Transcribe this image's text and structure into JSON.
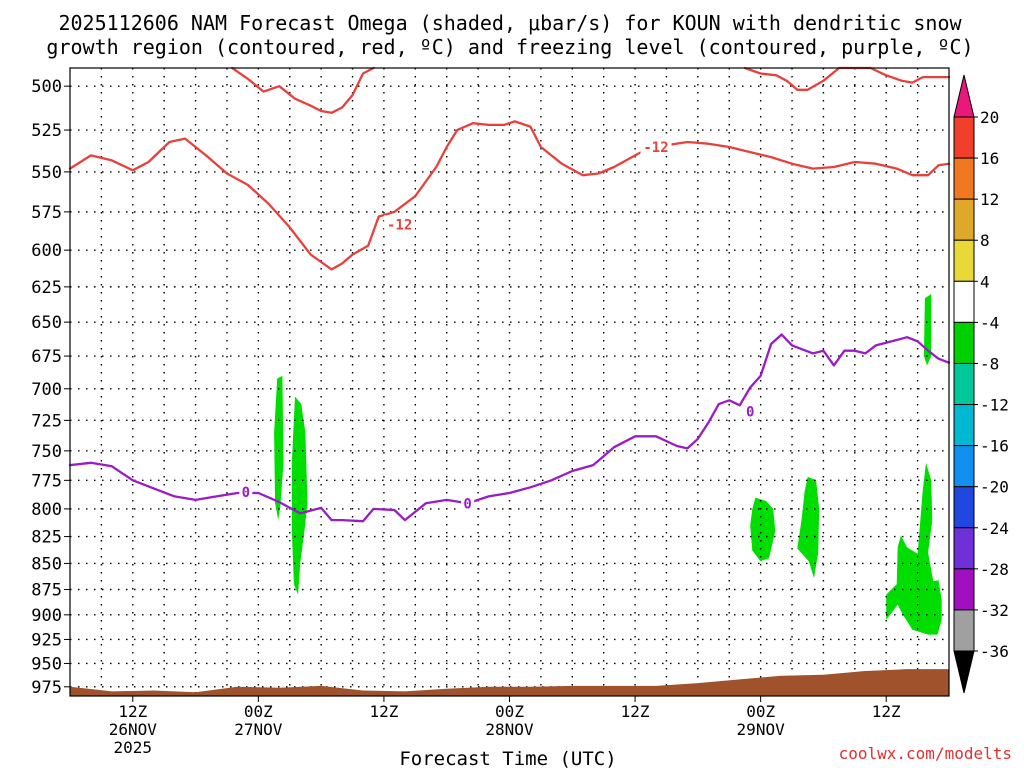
{
  "title": {
    "line1": "2025112606 NAM Forecast Omega (shaded, μbar/s) for KOUN with dendritic snow",
    "line2": "growth region (contoured, red, ºC) and freezing level (contoured, purple, ºC)"
  },
  "credit": "coolwx.com/modelts",
  "chart_data": {
    "type": "area",
    "xlabel": "Forecast Time (UTC)",
    "ylabel": "",
    "x_unit": "hours since 2025-11-26 00Z",
    "xlim": [
      6,
      90
    ],
    "ylim": [
      985,
      490
    ],
    "y_scale": "log-pressure",
    "y_ticks": [
      500,
      525,
      550,
      575,
      600,
      625,
      650,
      675,
      700,
      725,
      750,
      775,
      800,
      825,
      850,
      875,
      900,
      925,
      950,
      975
    ],
    "x_ticks": [
      {
        "x": 12,
        "l1": "12Z",
        "l2": "26NOV",
        "l3": "2025"
      },
      {
        "x": 24,
        "l1": "00Z",
        "l2": "27NOV",
        "l3": ""
      },
      {
        "x": 36,
        "l1": "12Z",
        "l2": "",
        "l3": ""
      },
      {
        "x": 48,
        "l1": "00Z",
        "l2": "28NOV",
        "l3": ""
      },
      {
        "x": 60,
        "l1": "12Z",
        "l2": "",
        "l3": ""
      },
      {
        "x": 72,
        "l1": "00Z",
        "l2": "29NOV",
        "l3": ""
      },
      {
        "x": 84,
        "l1": "12Z",
        "l2": "",
        "l3": ""
      }
    ],
    "grid": true,
    "colors": {
      "dgz": "#e8413c",
      "freezing": "#9a1bc8",
      "omega_neg": "#00dd00",
      "ground": "#a0522d"
    },
    "series": [
      {
        "kind": "contour",
        "color_key": "dgz",
        "labels": [
          {
            "x": 37.5,
            "p": 583,
            "text": "-12"
          },
          {
            "x": 62,
            "p": 535,
            "text": "-12"
          }
        ],
        "points": [
          [
            6,
            548
          ],
          [
            8,
            540
          ],
          [
            10,
            543
          ],
          [
            12,
            549
          ],
          [
            13.5,
            544
          ],
          [
            15.5,
            532
          ],
          [
            17,
            530
          ],
          [
            19,
            540
          ],
          [
            21,
            551
          ],
          [
            23,
            558
          ],
          [
            25,
            570
          ],
          [
            27,
            585
          ],
          [
            29,
            603
          ],
          [
            31,
            613
          ],
          [
            32,
            609
          ],
          [
            33,
            603
          ],
          [
            34.5,
            597
          ],
          [
            35.5,
            578
          ],
          [
            37,
            575
          ],
          [
            39,
            565
          ],
          [
            41,
            547
          ],
          [
            42,
            535
          ],
          [
            43,
            525
          ],
          [
            44.5,
            521
          ],
          [
            46,
            522
          ],
          [
            47.5,
            522
          ],
          [
            48.5,
            520
          ],
          [
            49.5,
            522
          ],
          [
            50,
            523
          ],
          [
            51,
            535
          ],
          [
            53,
            545
          ],
          [
            55,
            552
          ],
          [
            56.5,
            551
          ],
          [
            58,
            547
          ],
          [
            60,
            540
          ],
          [
            61.5,
            535
          ],
          [
            63,
            534
          ],
          [
            65,
            532
          ],
          [
            67,
            533
          ],
          [
            69,
            535
          ],
          [
            71,
            538
          ],
          [
            73,
            541
          ],
          [
            75,
            545
          ],
          [
            77,
            548
          ],
          [
            79,
            547
          ],
          [
            81,
            544
          ],
          [
            83,
            545
          ],
          [
            85,
            548
          ],
          [
            86.5,
            552
          ],
          [
            88,
            552
          ],
          [
            89,
            546
          ],
          [
            90,
            545
          ]
        ]
      },
      {
        "kind": "contour",
        "color_key": "dgz",
        "points": [
          [
            21.5,
            490
          ],
          [
            23,
            496
          ],
          [
            24.5,
            503
          ],
          [
            26,
            500
          ],
          [
            27.5,
            507
          ],
          [
            29,
            511
          ],
          [
            30,
            514
          ],
          [
            31,
            515
          ],
          [
            32,
            512
          ],
          [
            33,
            505
          ],
          [
            34,
            493
          ],
          [
            35,
            490
          ]
        ]
      },
      {
        "kind": "contour",
        "color_key": "dgz",
        "points": [
          [
            70.5,
            490
          ],
          [
            72,
            493
          ],
          [
            73.5,
            494
          ],
          [
            74.5,
            497
          ],
          [
            75.5,
            502
          ],
          [
            76.5,
            502
          ],
          [
            78,
            497
          ],
          [
            79.5,
            490
          ],
          [
            82.5,
            490
          ],
          [
            84,
            494
          ],
          [
            85.5,
            497
          ],
          [
            86.5,
            498
          ],
          [
            87.5,
            495
          ],
          [
            89,
            495
          ],
          [
            90,
            495
          ]
        ]
      },
      {
        "kind": "contour",
        "color_key": "freezing",
        "labels": [
          {
            "x": 22.8,
            "p": 785,
            "text": "0"
          },
          {
            "x": 44,
            "p": 795,
            "text": "0"
          },
          {
            "x": 71,
            "p": 718,
            "text": "0"
          }
        ],
        "points": [
          [
            6,
            762
          ],
          [
            8,
            760
          ],
          [
            10,
            763
          ],
          [
            12,
            775
          ],
          [
            14,
            782
          ],
          [
            16,
            789
          ],
          [
            18,
            792
          ],
          [
            20,
            789
          ],
          [
            22,
            786
          ],
          [
            24,
            786
          ],
          [
            26,
            794
          ],
          [
            28,
            804
          ],
          [
            30,
            799
          ],
          [
            31,
            810
          ],
          [
            32,
            810
          ],
          [
            34,
            811
          ],
          [
            35,
            800
          ],
          [
            37,
            801
          ],
          [
            38,
            810
          ],
          [
            40,
            795
          ],
          [
            42,
            792
          ],
          [
            44,
            795
          ],
          [
            46,
            789
          ],
          [
            48,
            786
          ],
          [
            50,
            781
          ],
          [
            52,
            775
          ],
          [
            54,
            767
          ],
          [
            56,
            762
          ],
          [
            58,
            747
          ],
          [
            60,
            738
          ],
          [
            62,
            738
          ],
          [
            64,
            746
          ],
          [
            65,
            748
          ],
          [
            66,
            740
          ],
          [
            67,
            727
          ],
          [
            68,
            712
          ],
          [
            69,
            709
          ],
          [
            70,
            713
          ],
          [
            71,
            699
          ],
          [
            72,
            690
          ],
          [
            73,
            666
          ],
          [
            74,
            659
          ],
          [
            75,
            667
          ],
          [
            76,
            670
          ],
          [
            77,
            673
          ],
          [
            78,
            671
          ],
          [
            79,
            682
          ],
          [
            80,
            671
          ],
          [
            81,
            671
          ],
          [
            82,
            673
          ],
          [
            83,
            667
          ],
          [
            84,
            665
          ],
          [
            85,
            663
          ],
          [
            86,
            661
          ],
          [
            87,
            664
          ],
          [
            88,
            671
          ],
          [
            89,
            677
          ],
          [
            90,
            680
          ]
        ]
      }
    ],
    "omega_blobs": [
      {
        "value": -6,
        "points": [
          [
            25.8,
            692
          ],
          [
            26.3,
            690
          ],
          [
            26.4,
            760
          ],
          [
            26.1,
            798
          ],
          [
            25.9,
            810
          ],
          [
            25.6,
            795
          ],
          [
            25.5,
            735
          ]
        ]
      },
      {
        "value": -6,
        "points": [
          [
            27.5,
            706
          ],
          [
            28.1,
            712
          ],
          [
            28.5,
            735
          ],
          [
            28.7,
            795
          ],
          [
            28.4,
            820
          ],
          [
            28.0,
            850
          ],
          [
            27.8,
            880
          ],
          [
            27.4,
            870
          ],
          [
            27.2,
            820
          ],
          [
            27.2,
            760
          ]
        ]
      },
      {
        "value": -6,
        "points": [
          [
            71.5,
            790
          ],
          [
            72.5,
            793
          ],
          [
            73.2,
            800
          ],
          [
            73.4,
            820
          ],
          [
            72.8,
            845
          ],
          [
            72.0,
            848
          ],
          [
            71.2,
            838
          ],
          [
            71.0,
            815
          ],
          [
            71.2,
            800
          ]
        ]
      },
      {
        "value": -6,
        "points": [
          [
            76.5,
            772
          ],
          [
            77.3,
            775
          ],
          [
            77.6,
            800
          ],
          [
            77.5,
            840
          ],
          [
            77.1,
            864
          ],
          [
            76.6,
            848
          ],
          [
            75.5,
            836
          ],
          [
            75.9,
            810
          ],
          [
            76.2,
            785
          ]
        ]
      },
      {
        "value": -6,
        "points": [
          [
            85.1,
            835
          ],
          [
            85.4,
            824
          ],
          [
            86.0,
            835
          ],
          [
            87.0,
            841
          ],
          [
            87.5,
            783
          ],
          [
            87.8,
            760
          ],
          [
            88.3,
            775
          ],
          [
            88.4,
            810
          ],
          [
            88.0,
            840
          ],
          [
            88.5,
            867
          ],
          [
            89.0,
            866
          ],
          [
            89.3,
            885
          ],
          [
            89.3,
            905
          ],
          [
            88.9,
            920
          ],
          [
            88.0,
            920
          ],
          [
            86.5,
            915
          ],
          [
            85.6,
            900
          ],
          [
            85.1,
            890
          ],
          [
            84.0,
            905
          ],
          [
            84.0,
            880
          ],
          [
            85.0,
            870
          ]
        ]
      },
      {
        "value": -6,
        "points": [
          [
            87.7,
            633
          ],
          [
            88.3,
            630
          ],
          [
            88.3,
            675
          ],
          [
            87.9,
            682
          ],
          [
            87.6,
            675
          ]
        ]
      }
    ],
    "ground": [
      [
        6,
        975
      ],
      [
        10,
        980
      ],
      [
        14,
        979
      ],
      [
        18,
        981
      ],
      [
        22,
        975
      ],
      [
        26,
        976
      ],
      [
        30,
        974
      ],
      [
        34,
        979
      ],
      [
        38,
        980
      ],
      [
        42,
        977
      ],
      [
        46,
        975
      ],
      [
        50,
        975
      ],
      [
        54,
        974
      ],
      [
        58,
        974
      ],
      [
        62,
        974
      ],
      [
        66,
        971
      ],
      [
        70,
        967
      ],
      [
        74,
        963
      ],
      [
        78,
        962
      ],
      [
        82,
        958
      ],
      [
        84,
        957
      ],
      [
        86,
        956
      ],
      [
        88,
        956
      ],
      [
        90,
        956
      ]
    ]
  },
  "colorbar": {
    "levels": [
      20,
      16,
      12,
      8,
      4,
      -4,
      -8,
      -12,
      -16,
      -20,
      -24,
      -28,
      -32,
      -36
    ],
    "colors": [
      "#f0402c",
      "#f07820",
      "#e0a828",
      "#e8d838",
      "#ffffff",
      "#00d000",
      "#00c898",
      "#00b8d0",
      "#1090f0",
      "#2048e0",
      "#7030d8",
      "#a010c0",
      "#a0a0a0"
    ],
    "top_arrow_color": "#e8187c",
    "bottom_arrow_color": "#000000"
  }
}
